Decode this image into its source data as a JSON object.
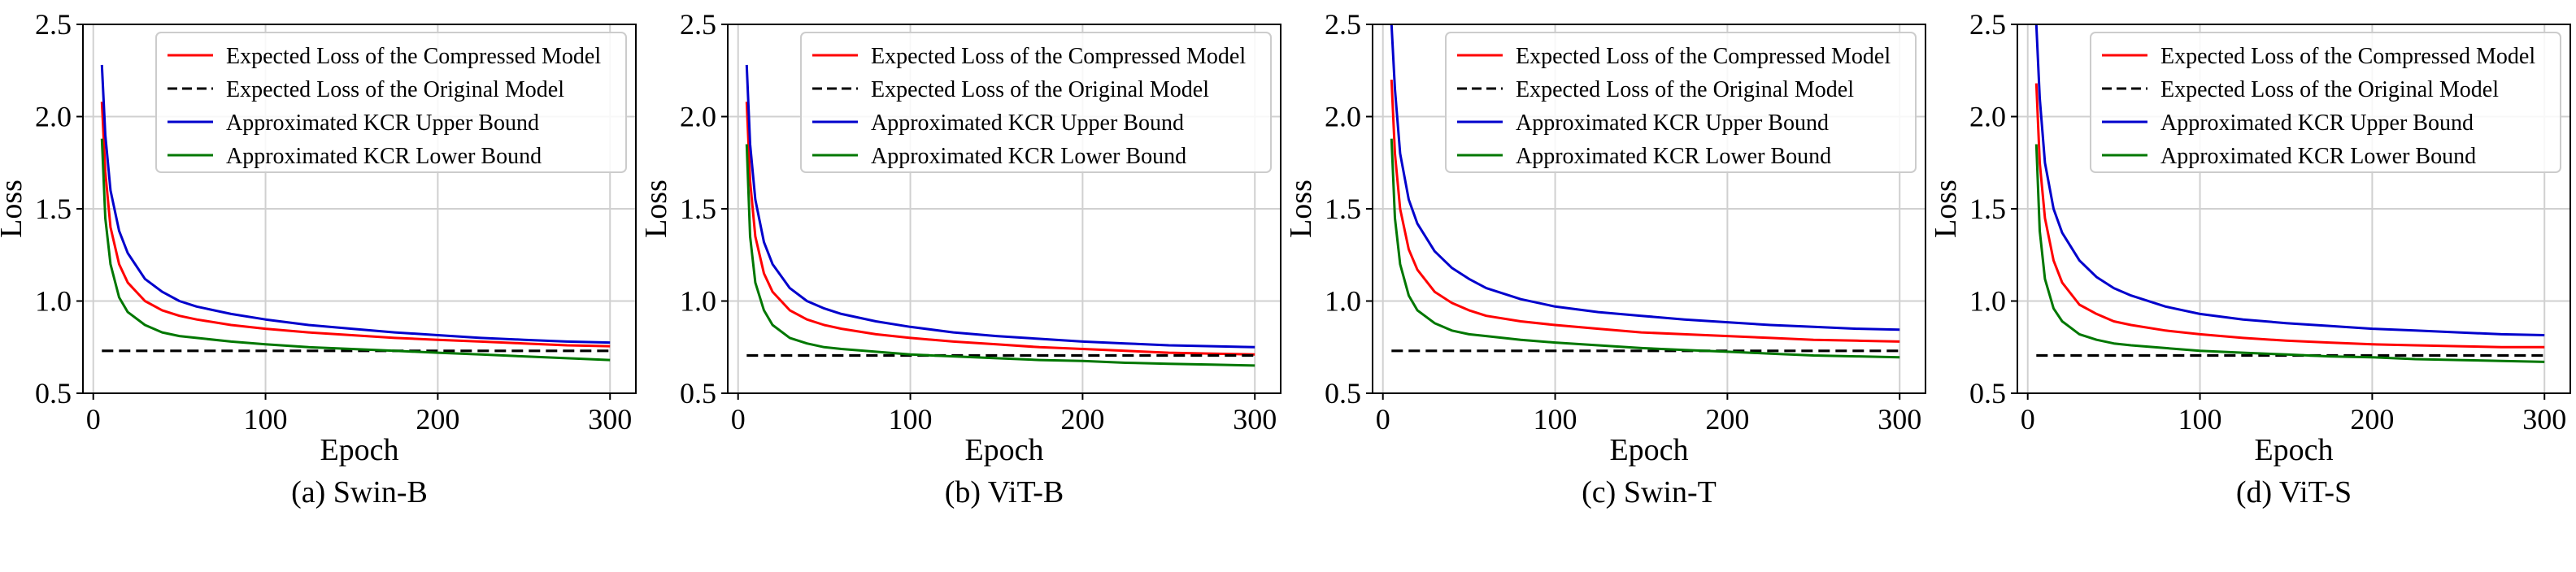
{
  "chart_data": [
    {
      "type": "line",
      "caption": "(a) Swin-B",
      "xlabel": "Epoch",
      "ylabel": "Loss",
      "xlim": [
        -6,
        315
      ],
      "ylim": [
        0.5,
        2.5
      ],
      "xticks": [
        0,
        100,
        200,
        300
      ],
      "yticks": [
        0.5,
        1.0,
        1.5,
        2.0,
        2.5
      ],
      "grid": true,
      "legend_position": "top-right",
      "series": [
        {
          "name": "Expected Loss of the Compressed Model",
          "color": "#ff0000",
          "dash": "solid",
          "x": [
            5,
            7,
            10,
            15,
            20,
            30,
            40,
            50,
            60,
            80,
            100,
            125,
            150,
            175,
            200,
            225,
            250,
            275,
            300
          ],
          "y": [
            2.08,
            1.7,
            1.4,
            1.2,
            1.1,
            1.0,
            0.95,
            0.92,
            0.9,
            0.87,
            0.85,
            0.83,
            0.815,
            0.8,
            0.79,
            0.78,
            0.77,
            0.76,
            0.755
          ]
        },
        {
          "name": "Expected Loss of the Original Model",
          "color": "#000000",
          "dash": "dashed",
          "x": [
            5,
            300
          ],
          "y": [
            0.73,
            0.73
          ]
        },
        {
          "name": "Approximated KCR Upper Bound",
          "color": "#0000cc",
          "dash": "solid",
          "x": [
            5,
            7,
            10,
            15,
            20,
            30,
            40,
            50,
            60,
            80,
            100,
            125,
            150,
            175,
            200,
            225,
            250,
            275,
            300
          ],
          "y": [
            2.28,
            1.9,
            1.6,
            1.38,
            1.26,
            1.12,
            1.05,
            1.0,
            0.97,
            0.93,
            0.9,
            0.87,
            0.85,
            0.83,
            0.815,
            0.8,
            0.79,
            0.78,
            0.775
          ]
        },
        {
          "name": "Approximated KCR Lower Bound",
          "color": "#007700",
          "dash": "solid",
          "x": [
            5,
            7,
            10,
            15,
            20,
            30,
            40,
            50,
            60,
            80,
            100,
            125,
            150,
            175,
            200,
            225,
            250,
            275,
            300
          ],
          "y": [
            1.88,
            1.45,
            1.2,
            1.02,
            0.94,
            0.87,
            0.83,
            0.81,
            0.8,
            0.78,
            0.765,
            0.75,
            0.74,
            0.73,
            0.72,
            0.71,
            0.7,
            0.69,
            0.68
          ]
        }
      ]
    },
    {
      "type": "line",
      "caption": "(b) ViT-B",
      "xlabel": "Epoch",
      "ylabel": "Loss",
      "xlim": [
        -6,
        315
      ],
      "ylim": [
        0.5,
        2.5
      ],
      "xticks": [
        0,
        100,
        200,
        300
      ],
      "yticks": [
        0.5,
        1.0,
        1.5,
        2.0,
        2.5
      ],
      "grid": true,
      "legend_position": "top-right",
      "series": [
        {
          "name": "Expected Loss of the Compressed Model",
          "color": "#ff0000",
          "dash": "solid",
          "x": [
            5,
            7,
            10,
            15,
            20,
            30,
            40,
            50,
            60,
            80,
            100,
            125,
            150,
            175,
            200,
            225,
            250,
            275,
            300
          ],
          "y": [
            2.08,
            1.65,
            1.35,
            1.15,
            1.05,
            0.95,
            0.9,
            0.87,
            0.85,
            0.82,
            0.8,
            0.78,
            0.765,
            0.75,
            0.74,
            0.73,
            0.72,
            0.715,
            0.71
          ]
        },
        {
          "name": "Expected Loss of the Original Model",
          "color": "#000000",
          "dash": "dashed",
          "x": [
            5,
            300
          ],
          "y": [
            0.705,
            0.705
          ]
        },
        {
          "name": "Approximated KCR Upper Bound",
          "color": "#0000cc",
          "dash": "solid",
          "x": [
            5,
            7,
            10,
            15,
            20,
            30,
            40,
            50,
            60,
            80,
            100,
            125,
            150,
            175,
            200,
            225,
            250,
            275,
            300
          ],
          "y": [
            2.28,
            1.85,
            1.55,
            1.32,
            1.2,
            1.07,
            1.0,
            0.96,
            0.93,
            0.89,
            0.86,
            0.83,
            0.81,
            0.795,
            0.78,
            0.77,
            0.76,
            0.755,
            0.75
          ]
        },
        {
          "name": "Approximated KCR Lower Bound",
          "color": "#007700",
          "dash": "solid",
          "x": [
            5,
            7,
            10,
            15,
            20,
            30,
            40,
            50,
            60,
            80,
            100,
            125,
            150,
            175,
            200,
            225,
            250,
            275,
            300
          ],
          "y": [
            1.85,
            1.35,
            1.1,
            0.95,
            0.87,
            0.8,
            0.77,
            0.75,
            0.74,
            0.725,
            0.71,
            0.7,
            0.69,
            0.68,
            0.675,
            0.665,
            0.66,
            0.655,
            0.65
          ]
        }
      ]
    },
    {
      "type": "line",
      "caption": "(c) Swin-T",
      "xlabel": "Epoch",
      "ylabel": "Loss",
      "xlim": [
        -6,
        315
      ],
      "ylim": [
        0.5,
        2.5
      ],
      "xticks": [
        0,
        100,
        200,
        300
      ],
      "yticks": [
        0.5,
        1.0,
        1.5,
        2.0,
        2.5
      ],
      "grid": true,
      "legend_position": "top-right",
      "series": [
        {
          "name": "Expected Loss of the Compressed Model",
          "color": "#ff0000",
          "dash": "solid",
          "x": [
            5,
            7,
            10,
            15,
            20,
            30,
            40,
            50,
            60,
            80,
            100,
            125,
            150,
            175,
            200,
            225,
            250,
            275,
            300
          ],
          "y": [
            2.2,
            1.8,
            1.5,
            1.28,
            1.17,
            1.05,
            0.99,
            0.95,
            0.92,
            0.89,
            0.87,
            0.85,
            0.83,
            0.82,
            0.81,
            0.8,
            0.79,
            0.785,
            0.78
          ]
        },
        {
          "name": "Expected Loss of the Original Model",
          "color": "#000000",
          "dash": "dashed",
          "x": [
            5,
            300
          ],
          "y": [
            0.73,
            0.73
          ]
        },
        {
          "name": "Approximated KCR Upper Bound",
          "color": "#0000cc",
          "dash": "solid",
          "x": [
            5,
            7,
            10,
            15,
            20,
            30,
            40,
            50,
            60,
            80,
            100,
            125,
            150,
            175,
            200,
            225,
            250,
            275,
            300
          ],
          "y": [
            2.5,
            2.15,
            1.8,
            1.55,
            1.42,
            1.27,
            1.18,
            1.12,
            1.07,
            1.01,
            0.97,
            0.94,
            0.92,
            0.9,
            0.885,
            0.87,
            0.86,
            0.85,
            0.845
          ]
        },
        {
          "name": "Approximated KCR Lower Bound",
          "color": "#007700",
          "dash": "solid",
          "x": [
            5,
            7,
            10,
            15,
            20,
            30,
            40,
            50,
            60,
            80,
            100,
            125,
            150,
            175,
            200,
            225,
            250,
            275,
            300
          ],
          "y": [
            1.88,
            1.45,
            1.2,
            1.03,
            0.95,
            0.88,
            0.84,
            0.82,
            0.81,
            0.79,
            0.775,
            0.76,
            0.745,
            0.735,
            0.725,
            0.715,
            0.705,
            0.7,
            0.695
          ]
        }
      ]
    },
    {
      "type": "line",
      "caption": "(d) ViT-S",
      "xlabel": "Epoch",
      "ylabel": "Loss",
      "xlim": [
        -6,
        315
      ],
      "ylim": [
        0.5,
        2.5
      ],
      "xticks": [
        0,
        100,
        200,
        300
      ],
      "yticks": [
        0.5,
        1.0,
        1.5,
        2.0,
        2.5
      ],
      "grid": true,
      "legend_position": "top-right",
      "series": [
        {
          "name": "Expected Loss of the Compressed Model",
          "color": "#ff0000",
          "dash": "solid",
          "x": [
            5,
            7,
            10,
            15,
            20,
            30,
            40,
            50,
            60,
            80,
            100,
            125,
            150,
            175,
            200,
            225,
            250,
            275,
            300
          ],
          "y": [
            2.18,
            1.75,
            1.45,
            1.22,
            1.1,
            0.98,
            0.93,
            0.89,
            0.87,
            0.84,
            0.82,
            0.8,
            0.785,
            0.775,
            0.765,
            0.76,
            0.755,
            0.75,
            0.75
          ]
        },
        {
          "name": "Expected Loss of the Original Model",
          "color": "#000000",
          "dash": "dashed",
          "x": [
            5,
            300
          ],
          "y": [
            0.705,
            0.705
          ]
        },
        {
          "name": "Approximated KCR Upper Bound",
          "color": "#0000cc",
          "dash": "solid",
          "x": [
            5,
            7,
            10,
            15,
            20,
            30,
            40,
            50,
            60,
            80,
            100,
            125,
            150,
            175,
            200,
            225,
            250,
            275,
            300
          ],
          "y": [
            2.5,
            2.1,
            1.75,
            1.5,
            1.37,
            1.22,
            1.13,
            1.07,
            1.03,
            0.97,
            0.93,
            0.9,
            0.88,
            0.865,
            0.85,
            0.84,
            0.83,
            0.82,
            0.815
          ]
        },
        {
          "name": "Approximated KCR Lower Bound",
          "color": "#007700",
          "dash": "solid",
          "x": [
            5,
            7,
            10,
            15,
            20,
            30,
            40,
            50,
            60,
            80,
            100,
            125,
            150,
            175,
            200,
            225,
            250,
            275,
            300
          ],
          "y": [
            1.85,
            1.38,
            1.12,
            0.96,
            0.89,
            0.82,
            0.79,
            0.77,
            0.76,
            0.745,
            0.73,
            0.72,
            0.71,
            0.7,
            0.695,
            0.685,
            0.68,
            0.675,
            0.67
          ]
        }
      ]
    }
  ]
}
